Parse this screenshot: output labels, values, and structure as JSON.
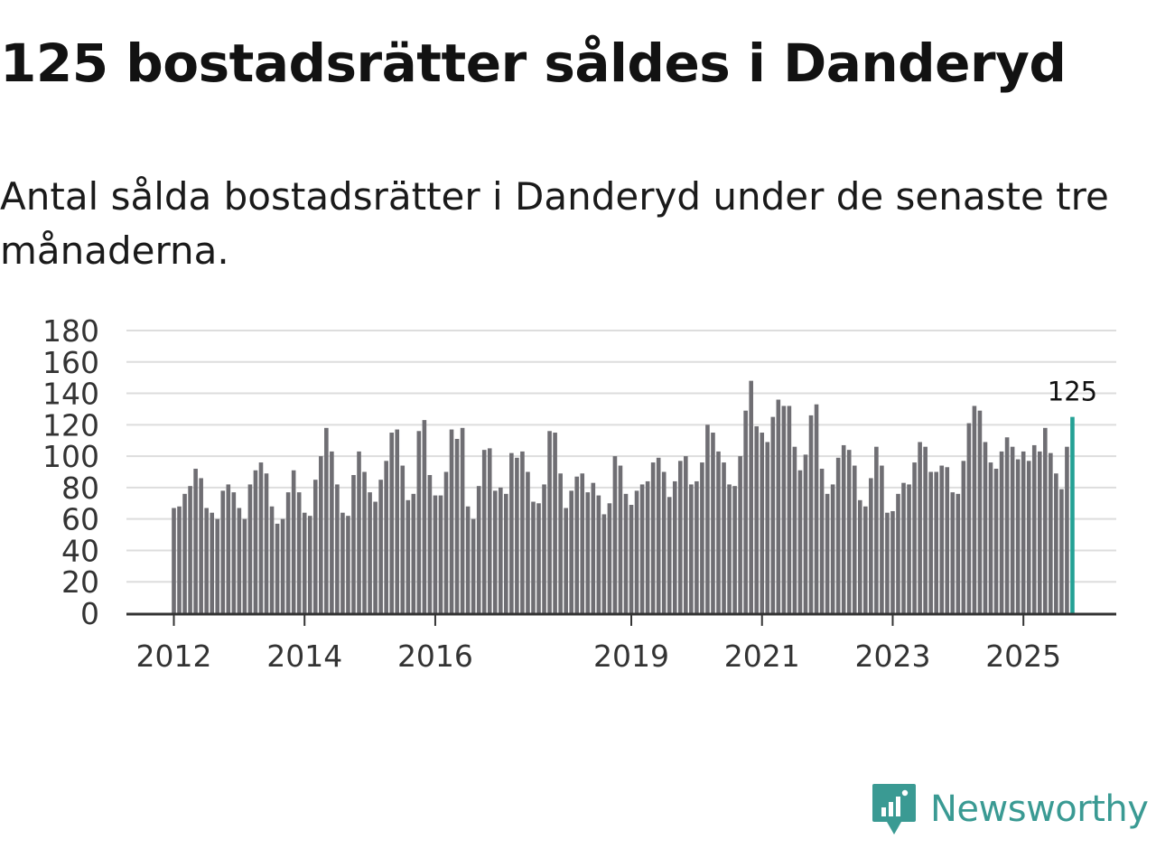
{
  "title": "125 bostadsrätter såldes i Danderyd",
  "subtitle": "Antal sålda bostadsrätter i Danderyd under de senaste tre månaderna.",
  "colors": {
    "bar": "#6f6e73",
    "highlight": "#24a195",
    "grid": "#dddddd",
    "axis": "#333333",
    "brand": "#3a9a93"
  },
  "brand": {
    "name": "Newsworthy",
    "icon": "newsworthy-logo-icon"
  },
  "chart_data": {
    "type": "bar",
    "title": "125 bostadsrätter såldes i Danderyd",
    "xlabel": "",
    "ylabel": "",
    "ylim": [
      0,
      180
    ],
    "yticks": [
      0,
      20,
      40,
      60,
      80,
      100,
      120,
      140,
      160,
      180
    ],
    "grid": true,
    "x_tick_labels": [
      {
        "label": "2012",
        "index": 0
      },
      {
        "label": "2014",
        "index": 24
      },
      {
        "label": "2016",
        "index": 48
      },
      {
        "label": "2019",
        "index": 84
      },
      {
        "label": "2021",
        "index": 108
      },
      {
        "label": "2023",
        "index": 132
      },
      {
        "label": "2025",
        "index": 156
      }
    ],
    "highlight": {
      "label": "125",
      "value": 125
    },
    "series": [
      {
        "name": "Antal sålda bostadsrätter (senaste tre månaderna)",
        "values": [
          67,
          68,
          76,
          81,
          92,
          86,
          67,
          64,
          60,
          78,
          82,
          77,
          67,
          60,
          82,
          91,
          96,
          89,
          68,
          57,
          60,
          77,
          91,
          77,
          64,
          62,
          85,
          100,
          118,
          103,
          82,
          64,
          62,
          88,
          103,
          90,
          77,
          71,
          85,
          97,
          115,
          117,
          94,
          72,
          76,
          116,
          123,
          88,
          75,
          75,
          90,
          117,
          111,
          118,
          68,
          60,
          81,
          104,
          105,
          78,
          80,
          76,
          102,
          99,
          103,
          90,
          71,
          70,
          82,
          116,
          115,
          89,
          67,
          78,
          87,
          89,
          77,
          83,
          75,
          63,
          70,
          100,
          94,
          76,
          69,
          78,
          82,
          84,
          96,
          99,
          90,
          74,
          84,
          97,
          100,
          82,
          84,
          96,
          120,
          115,
          103,
          96,
          82,
          81,
          100,
          129,
          148,
          119,
          115,
          109,
          125,
          136,
          132,
          132,
          106,
          91,
          101,
          126,
          133,
          92,
          76,
          82,
          99,
          107,
          104,
          94,
          72,
          68,
          86,
          106,
          94,
          64,
          65,
          76,
          83,
          82,
          96,
          109,
          106,
          90,
          90,
          94,
          93,
          77,
          76,
          97,
          121,
          132,
          129,
          109,
          96,
          92,
          103,
          112,
          106,
          98,
          103,
          97,
          107,
          103,
          118,
          102,
          89,
          79,
          106,
          125
        ]
      }
    ]
  }
}
